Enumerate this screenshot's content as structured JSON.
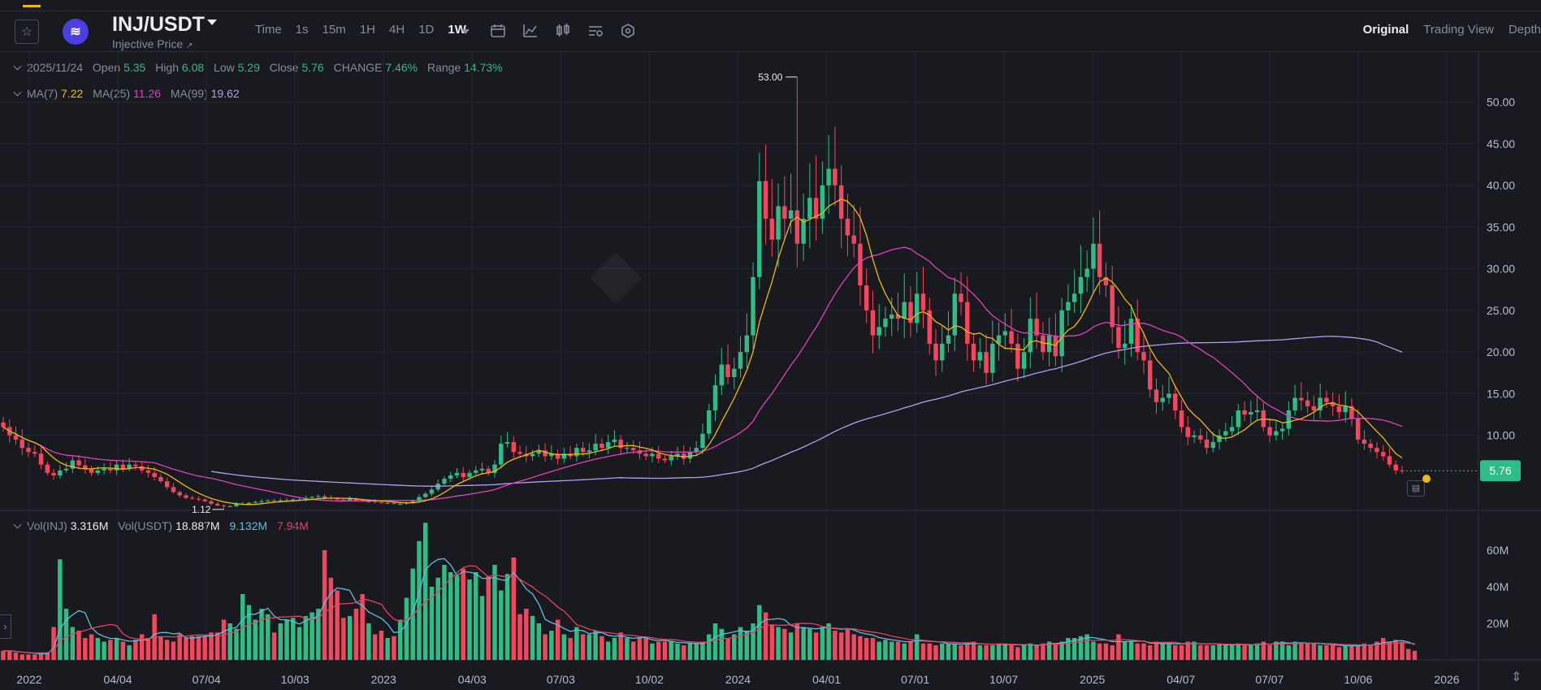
{
  "header": {
    "pair": "INJ/USDT",
    "subtitle": "Injective Price",
    "intervals": [
      "Time",
      "1s",
      "15m",
      "1H",
      "4H",
      "1D",
      "1W"
    ],
    "active_interval": "1W",
    "views": [
      "Original",
      "Trading View",
      "Depth"
    ],
    "active_view": "Original",
    "tools": [
      "calendar-icon",
      "indicator-icon",
      "chart-type-icon",
      "settings-list-icon",
      "hexagon-settings-icon"
    ]
  },
  "ohlc": {
    "date": "2025/11/24",
    "open_label": "Open",
    "open": "5.35",
    "high_label": "High",
    "high": "6.08",
    "low_label": "Low",
    "low": "5.29",
    "close_label": "Close",
    "close": "5.76",
    "change_label": "CHANGE",
    "change": "7.46%",
    "range_label": "Range",
    "range": "14.73%"
  },
  "ma": {
    "ma7_label": "MA(7)",
    "ma7": "7.22",
    "ma25_label": "MA(25)",
    "ma25": "11.26",
    "ma99_label": "MA(99)",
    "ma99": "19.62"
  },
  "volume": {
    "inj_label": "Vol(INJ)",
    "inj": "3.316M",
    "usdt_label": "Vol(USDT)",
    "usdt": "18.887M",
    "ma1": "9.132M",
    "ma2": "7.94M"
  },
  "colors": {
    "up": "#2ebd85",
    "down": "#f6465d",
    "ma7": "#f0b90b",
    "ma25": "#e63fbf",
    "ma99": "#b79cf2",
    "vol_ma1": "#5bc0de",
    "vol_ma2": "#e8425f",
    "price_tag": "#2ebd85"
  },
  "chart_data": {
    "type": "candlestick",
    "interval": "1W",
    "x_tick_labels": [
      "2022",
      "04/04",
      "07/04",
      "10/03",
      "2023",
      "04/03",
      "07/03",
      "10/02",
      "2024",
      "04/01",
      "07/01",
      "10/07",
      "2025",
      "04/07",
      "07/07",
      "10/06",
      "2026"
    ],
    "price_axis_labels": [
      "10.00",
      "15.00",
      "20.00",
      "25.00",
      "30.00",
      "35.00",
      "40.00",
      "45.00",
      "50.00"
    ],
    "ylim": [
      1,
      56
    ],
    "volume_axis_labels": [
      "20M",
      "40M",
      "60M"
    ],
    "volume_ylim": [
      0,
      80
    ],
    "high_marker": "53.00",
    "low_marker": "1.12",
    "last_price": "5.76",
    "closes": [
      11,
      10,
      9.5,
      8.5,
      8,
      7.8,
      6.5,
      5.5,
      5.2,
      5.8,
      6,
      7,
      6.4,
      6,
      5.5,
      5.8,
      6,
      5.8,
      6.5,
      6,
      6.5,
      6.3,
      5.8,
      5.5,
      5,
      4.5,
      3.8,
      3.2,
      2.8,
      2.5,
      2.4,
      2.3,
      2.1,
      1.8,
      1.6,
      1.5,
      1.5,
      1.8,
      1.8,
      1.9,
      2,
      2.1,
      2.2,
      2.1,
      2.2,
      2.2,
      2.3,
      2.3,
      2.5,
      2.6,
      2.7,
      2.5,
      2.4,
      2.3,
      2.2,
      2.4,
      2.2,
      2.1,
      2.1,
      2,
      1.9,
      1.9,
      1.8,
      1.8,
      1.9,
      2.1,
      2.6,
      3,
      3.5,
      4.2,
      4.8,
      5.2,
      5.5,
      5,
      5.5,
      5.8,
      6,
      5.5,
      6.5,
      9,
      9.2,
      8,
      7.8,
      7.5,
      7.8,
      8.2,
      7.5,
      7.8,
      7.2,
      7.8,
      7.5,
      8.5,
      8,
      8.2,
      9,
      8.5,
      9.2,
      9.5,
      8.5,
      8.5,
      8.2,
      7.8,
      7.5,
      7.8,
      7.2,
      7,
      7.5,
      7.8,
      7.2,
      8,
      8.5,
      10.2,
      13,
      16,
      18.5,
      17,
      18,
      20,
      22,
      29,
      40.5,
      36,
      33.5,
      37.5,
      36,
      37,
      33,
      36,
      38.5,
      36,
      40,
      42,
      40,
      36,
      34,
      33,
      28,
      25,
      22,
      23,
      24,
      24.5,
      24,
      26,
      23.5,
      27,
      25,
      21,
      19,
      21,
      22,
      27,
      26,
      21,
      19,
      20,
      17.5,
      21,
      22,
      22.5,
      21,
      18,
      20,
      24,
      22,
      20,
      22,
      19.5,
      25,
      26,
      27,
      29,
      30,
      33,
      29,
      28,
      23,
      20.5,
      21,
      24,
      20,
      19,
      15.5,
      14,
      14.5,
      15,
      13,
      11,
      9.8,
      10,
      9.5,
      8.5,
      9.2,
      10,
      10.5,
      11,
      13,
      12.5,
      12.8,
      13,
      11,
      10,
      10.5,
      10.8,
      13,
      14.5,
      14.2,
      13.5,
      13,
      14.5,
      14,
      13.5,
      12.8,
      13.5,
      12,
      9.5,
      9,
      8.5,
      8,
      7.5,
      6.5,
      5.8,
      5.76
    ],
    "volumes": [
      5,
      5,
      4,
      3,
      3,
      3,
      4,
      4,
      18,
      55,
      28,
      18,
      16,
      12,
      14,
      12,
      10,
      11,
      12,
      10,
      8,
      11,
      14,
      12,
      25,
      13,
      11,
      10,
      14,
      12,
      13,
      13,
      13,
      15,
      15,
      22,
      20,
      17,
      36,
      30,
      22,
      28,
      25,
      15,
      20,
      22,
      23,
      18,
      24,
      26,
      28,
      60,
      45,
      38,
      23,
      24,
      28,
      36,
      20,
      14,
      16,
      12,
      13,
      22,
      34,
      50,
      65,
      75,
      40,
      45,
      52,
      48,
      46,
      50,
      44,
      48,
      35,
      46,
      52,
      38,
      47,
      56,
      25,
      28,
      24,
      20,
      14,
      16,
      22,
      14,
      12,
      18,
      14,
      14,
      16,
      13,
      10,
      12,
      15,
      12,
      10,
      12,
      12,
      9,
      10,
      10,
      10,
      9,
      8,
      9,
      9,
      10,
      14,
      20,
      17,
      12,
      14,
      18,
      16,
      20,
      30,
      26,
      19,
      18,
      17,
      15,
      20,
      18,
      17,
      15,
      18,
      20,
      16,
      15,
      17,
      14,
      13,
      12,
      12,
      10,
      11,
      10,
      10,
      9,
      10,
      14,
      9,
      9,
      8,
      9,
      9,
      9,
      8,
      9,
      10,
      8,
      8,
      8,
      9,
      9,
      8,
      7,
      8,
      9,
      8,
      9,
      10,
      9,
      10,
      12,
      12,
      13,
      14,
      10,
      9,
      9,
      8,
      14,
      10,
      10,
      9,
      9,
      8,
      10,
      9,
      9,
      8,
      8,
      10,
      10,
      8,
      8,
      8,
      9,
      8,
      8,
      9,
      8,
      8,
      9,
      10,
      8,
      10,
      10,
      8,
      10,
      9,
      9,
      9,
      8,
      8,
      8,
      7,
      8,
      8,
      8,
      9,
      8,
      10,
      12,
      10,
      11,
      10,
      6,
      5
    ]
  }
}
